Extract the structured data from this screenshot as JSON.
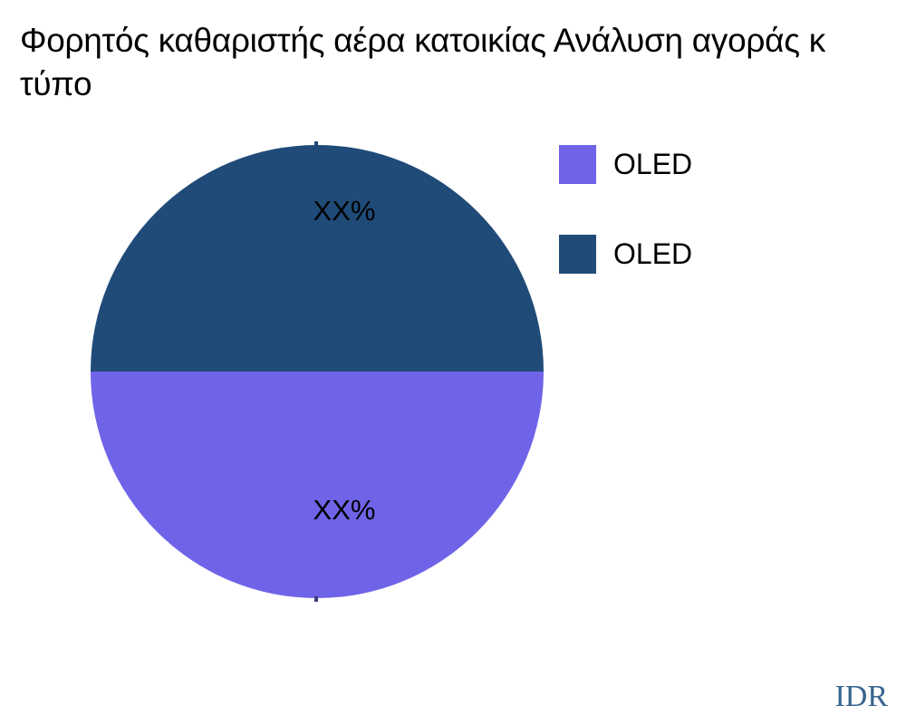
{
  "header": {
    "title_line1": "Φορητός καθαριστής αέρα κατοικίας Ανάλυση αγοράς κ",
    "title_line2": "τύπο"
  },
  "chart_data": {
    "type": "pie",
    "title": "Φορητός καθαριστής αέρα κατοικίας Ανάλυση αγοράς κ τύπο",
    "labels": [
      "OLED",
      "OLED"
    ],
    "values": [
      50,
      50
    ],
    "value_display": [
      "XX%",
      "XX%"
    ],
    "colors": [
      "#6F63E8",
      "#204B78"
    ],
    "slice_positions": [
      "bottom half",
      "top half"
    ],
    "legend_position": "right",
    "tick_color": "#204B78",
    "bottom_tick_color": "#3A3E7E"
  },
  "footer": {
    "text": "IDR",
    "color": "#36648F"
  }
}
